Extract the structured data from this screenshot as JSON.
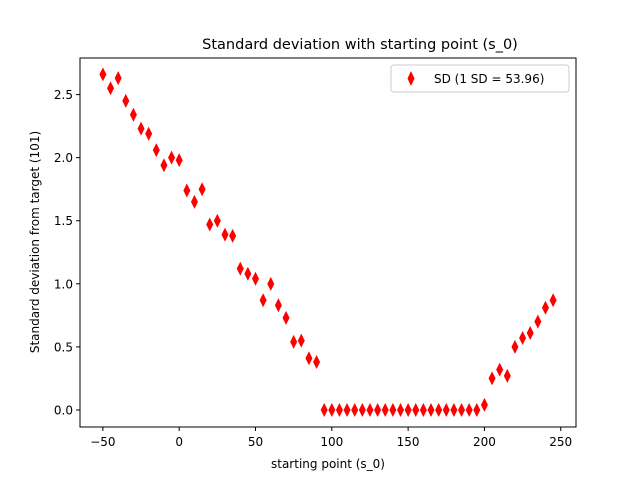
{
  "chart_data": {
    "type": "scatter",
    "title": "Standard deviation with starting point (s_0)",
    "xlabel": "starting point (s_0)",
    "ylabel": "Standard deviation from target (101)",
    "xlim": [
      -65,
      260
    ],
    "ylim": [
      -0.135,
      2.79
    ],
    "xticks": [
      -50,
      0,
      50,
      100,
      150,
      200,
      250
    ],
    "yticks": [
      0.0,
      0.5,
      1.0,
      1.5,
      2.0,
      2.5
    ],
    "xtick_labels": [
      "−50",
      "0",
      "50",
      "100",
      "150",
      "200",
      "250"
    ],
    "ytick_labels": [
      "0.0",
      "0.5",
      "1.0",
      "1.5",
      "2.0",
      "2.5"
    ],
    "grid": false,
    "legend": {
      "position": "top-right",
      "entries": [
        "SD (1 SD = 53.96)"
      ]
    },
    "series": [
      {
        "name": "SD (1 SD = 53.96)",
        "marker": "thin-diamond",
        "color": "#ff0000",
        "x": [
          -50,
          -45,
          -40,
          -35,
          -30,
          -25,
          -20,
          -15,
          -10,
          -5,
          0,
          5,
          10,
          15,
          20,
          25,
          30,
          35,
          40,
          45,
          50,
          55,
          60,
          65,
          70,
          75,
          80,
          85,
          90,
          95,
          100,
          105,
          110,
          115,
          120,
          125,
          130,
          135,
          140,
          145,
          150,
          155,
          160,
          165,
          170,
          175,
          180,
          185,
          190,
          195,
          200,
          205,
          210,
          215,
          220,
          225,
          230,
          235,
          240,
          245
        ],
        "y": [
          2.66,
          2.55,
          2.63,
          2.45,
          2.34,
          2.23,
          2.19,
          2.06,
          1.94,
          2.0,
          1.98,
          1.74,
          1.65,
          1.75,
          1.47,
          1.5,
          1.39,
          1.38,
          1.12,
          1.08,
          1.04,
          0.87,
          1.0,
          0.83,
          0.73,
          0.54,
          0.55,
          0.41,
          0.38,
          0.0,
          0.0,
          0.0,
          0.0,
          0.0,
          0.0,
          0.0,
          0.0,
          0.0,
          0.0,
          0.0,
          0.0,
          0.0,
          0.0,
          0.0,
          0.0,
          0.0,
          0.0,
          0.0,
          0.0,
          0.0,
          0.04,
          0.25,
          0.32,
          0.27,
          0.5,
          0.57,
          0.61,
          0.7,
          0.81,
          0.87
        ]
      }
    ]
  }
}
